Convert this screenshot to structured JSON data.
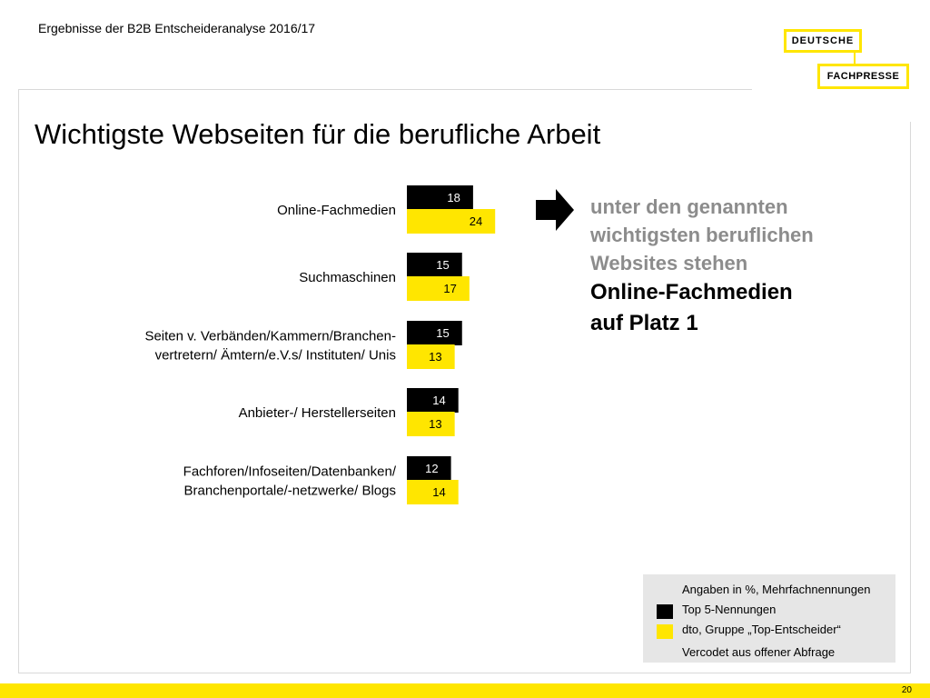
{
  "header": {
    "title": "Ergebnisse der B2B Entscheideranalyse 2016/17"
  },
  "logo": {
    "line1": "DEUTSCHE",
    "line2": "FACHPRESSE"
  },
  "main_title": "Wichtigste Webseiten für die berufliche Arbeit",
  "colors": {
    "accent": "#FFE600",
    "series1": "#000000",
    "series2": "#FFE600",
    "note_grey": "#8c8c8c",
    "legend_bg": "#e6e6e6"
  },
  "chart_data": {
    "type": "bar",
    "orientation": "horizontal",
    "categories": [
      [
        "Online-Fachmedien"
      ],
      [
        "Suchmaschinen"
      ],
      [
        "Seiten v. Verbänden/Kammern/Branchen-",
        "vertretern/ Ämtern/e.V.s/ Instituten/ Unis"
      ],
      [
        "Anbieter-/ Herstellerseiten"
      ],
      [
        "Fachforen/Infoseiten/Datenbanken/",
        "Branchenportale/-netzwerke/ Blogs"
      ]
    ],
    "series": [
      {
        "name": "Top 5-Nennungen",
        "values": [
          18,
          15,
          15,
          14,
          12
        ]
      },
      {
        "name": "dto, Gruppe „Top-Entscheider“",
        "values": [
          24,
          17,
          13,
          13,
          14
        ]
      }
    ],
    "unit": "%"
  },
  "note": {
    "grey_lines": [
      "unter den genannten",
      "wichtigsten beruflichen",
      "Websites stehen"
    ],
    "black_lines": [
      "Online-Fachmedien",
      "auf Platz 1"
    ]
  },
  "legend": {
    "line1": "Angaben in %, Mehrfachnennungen",
    "series1_label": "Top 5-Nennungen",
    "series2_label": "dto, Gruppe „Top-Entscheider“",
    "line4": "Vercodet aus offener Abfrage"
  },
  "footer": {
    "page_number": "20"
  }
}
